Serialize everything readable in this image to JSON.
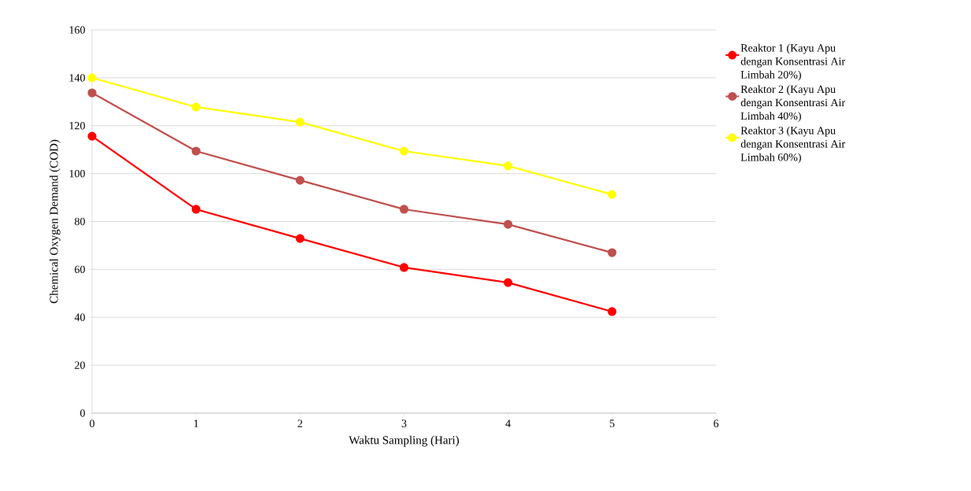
{
  "chart_data": {
    "type": "line",
    "xlabel": "Waktu Sampling (Hari)",
    "ylabel": "Chemical Oxygen Demand (COD)",
    "x": [
      0,
      1,
      2,
      3,
      4,
      5
    ],
    "series": [
      {
        "name": "Reaktor 1 (Kayu Apu dengan Konsentrasi Air Limbah 20%)",
        "color": "#ff0000",
        "values": [
          115.6,
          85.1,
          72.9,
          60.8,
          54.5,
          42.4
        ]
      },
      {
        "name": "Reaktor 2 (Kayu Apu dengan Konsentrasi Air Limbah 40%)",
        "color": "#c0504d",
        "values": [
          133.7,
          109.4,
          97.2,
          85.1,
          78.8,
          67.0
        ]
      },
      {
        "name": "Reaktor 3 (Kayu Apu dengan Konsentrasi Air Limbah 60%)",
        "color": "#ffff00",
        "values": [
          140,
          127.8,
          121.5,
          109.4,
          103.2,
          91.3
        ]
      }
    ],
    "xlim": [
      0,
      6
    ],
    "ylim": [
      0,
      160
    ],
    "xticks": [
      0,
      1,
      2,
      3,
      4,
      5,
      6
    ],
    "yticks": [
      0,
      20,
      40,
      60,
      80,
      100,
      120,
      140,
      160
    ],
    "grid": "y",
    "legend": "right",
    "marker": "circle",
    "line_style": "solid"
  }
}
